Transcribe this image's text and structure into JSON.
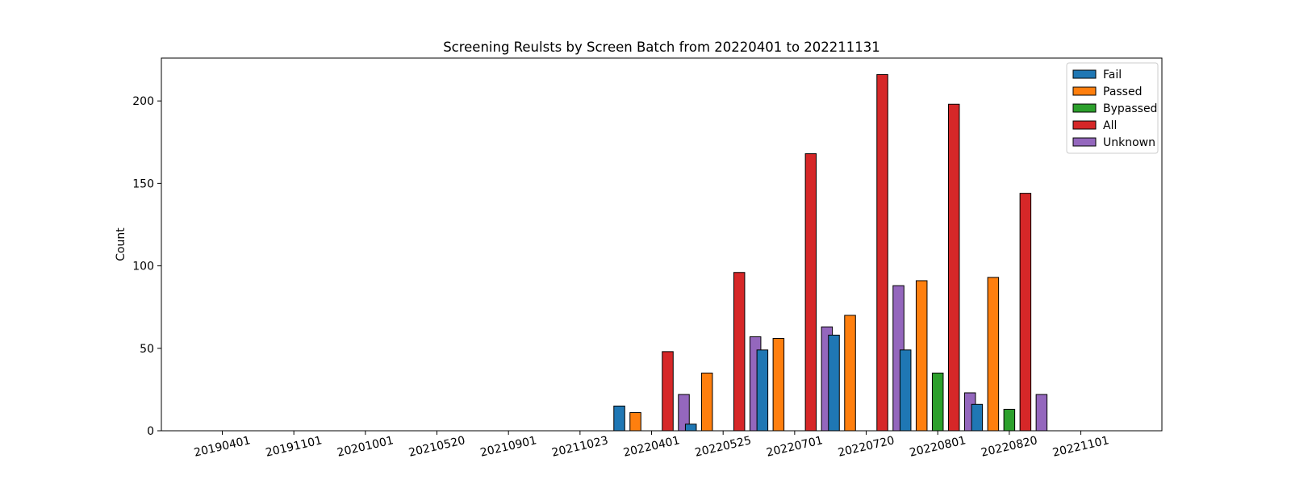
{
  "chart_data": {
    "type": "bar",
    "title": "Screening Reulsts by Screen Batch from 20220401 to 202211131",
    "xlabel": "",
    "ylabel": "Count",
    "categories": [
      "20190401",
      "20191101",
      "20201001",
      "20210520",
      "20210901",
      "20211023",
      "20220401",
      "20220525",
      "20220701",
      "20220720",
      "20220801",
      "20220820",
      "20221101"
    ],
    "ylim": [
      0,
      226
    ],
    "yticks": [
      0,
      50,
      100,
      150,
      200
    ],
    "grid": false,
    "legend_position": "top-right",
    "series": [
      {
        "name": "Fail",
        "color": "#1f77b4",
        "values": [
          0,
          0,
          0,
          0,
          0,
          0,
          15,
          4,
          49,
          58,
          49,
          16,
          0
        ]
      },
      {
        "name": "Passed",
        "color": "#ff7f0e",
        "values": [
          0,
          0,
          0,
          0,
          0,
          0,
          11,
          35,
          56,
          70,
          91,
          93,
          0
        ]
      },
      {
        "name": "Bypassed",
        "color": "#2ca02c",
        "values": [
          0,
          0,
          0,
          0,
          0,
          0,
          0,
          0,
          0,
          0,
          35,
          13,
          0
        ]
      },
      {
        "name": "All",
        "color": "#d62728",
        "values": [
          0,
          0,
          0,
          0,
          0,
          0,
          48,
          96,
          168,
          216,
          198,
          144,
          0
        ]
      },
      {
        "name": "Unknown",
        "color": "#9467bd",
        "values": [
          0,
          0,
          0,
          0,
          0,
          0,
          22,
          57,
          63,
          88,
          23,
          22,
          0
        ]
      }
    ]
  }
}
